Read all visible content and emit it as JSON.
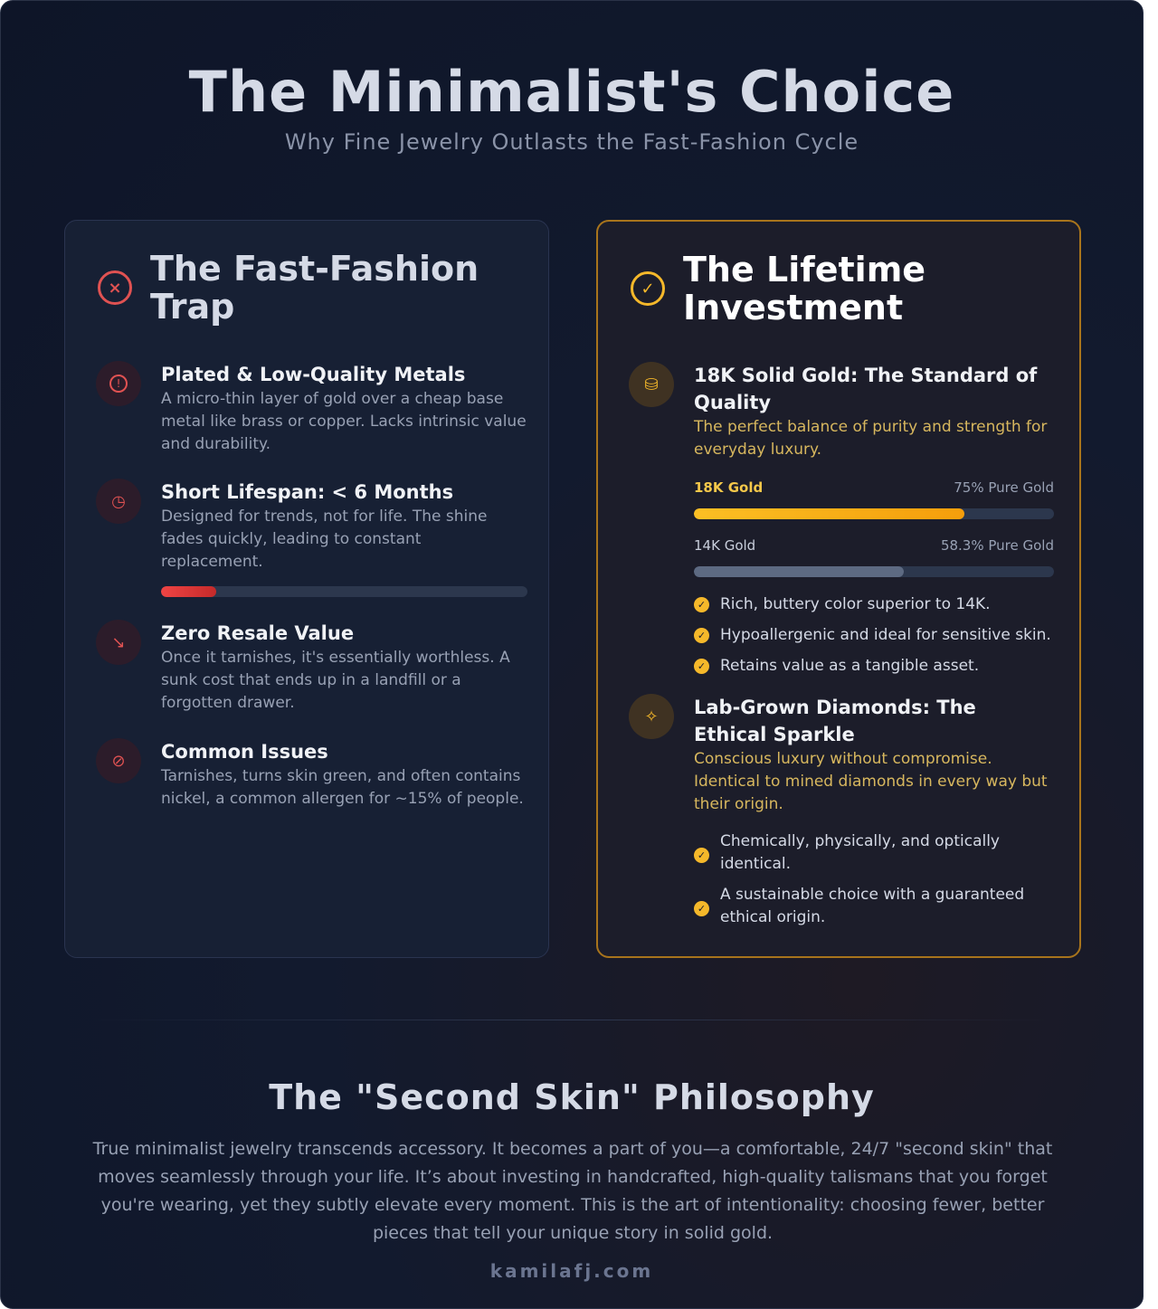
{
  "header": {
    "title": "The Minimalist's Choice",
    "subtitle": "Why Fine Jewelry Outlasts the Fast-Fashion Cycle"
  },
  "left": {
    "title": "The Fast-Fashion Trap",
    "icon": "x-circle-icon",
    "accent": "#e05252",
    "items": [
      {
        "icon": "alert-circle-icon",
        "title": "Plated & Low-Quality Metals",
        "text": "A micro-thin layer of gold over a cheap base metal like brass or copper. Lacks intrinsic value and durability."
      },
      {
        "icon": "clock-icon",
        "title": "Short Lifespan: < 6 Months",
        "text": "Designed for trends, not for life. The shine fades quickly, leading to constant replacement.",
        "progress": 15
      },
      {
        "icon": "trending-down-icon",
        "title": "Zero Resale Value",
        "text": "Once it tarnishes, it's essentially worthless. A sunk cost that ends up in a landfill or a forgotten drawer."
      },
      {
        "icon": "ban-icon",
        "title": "Common Issues",
        "text": "Tarnishes, turns skin green, and often contains nickel, a common allergen for ~15% of people."
      }
    ]
  },
  "right": {
    "title": "The Lifetime Investment",
    "icon": "check-circle-icon",
    "accent": "#f5b82a",
    "gold": {
      "icon": "gold-bars-icon",
      "title": "18K Solid Gold: The Standard of Quality",
      "text": "The perfect balance of purity and strength for everyday luxury.",
      "bars": [
        {
          "label": "18K Gold",
          "value_label": "75% Pure Gold",
          "value": 75
        },
        {
          "label": "14K Gold",
          "value_label": "58.3% Pure Gold",
          "value": 58.3
        }
      ],
      "checks": [
        "Rich, buttery color superior to 14K.",
        "Hypoallergenic and ideal for sensitive skin.",
        "Retains value as a tangible asset."
      ]
    },
    "diamond": {
      "icon": "sparkles-icon",
      "title": "Lab-Grown Diamonds: The Ethical Sparkle",
      "text": "Conscious luxury without compromise. Identical to mined diamonds in every way but their origin.",
      "checks": [
        "Chemically, physically, and optically identical.",
        "A sustainable choice with a guaranteed ethical origin."
      ]
    }
  },
  "philosophy": {
    "title": "The \"Second Skin\" Philosophy",
    "text": "True minimalist jewelry transcends accessory. It becomes a part of you—a comfortable, 24/7 \"second skin\" that moves seamlessly through your life. It’s about investing in handcrafted, high-quality talismans that you forget you're wearing, yet they subtly elevate every moment. This is the art of intentionality: choosing fewer, better pieces that tell your unique story in solid gold."
  },
  "footer": {
    "site": "kamilafj.com"
  }
}
